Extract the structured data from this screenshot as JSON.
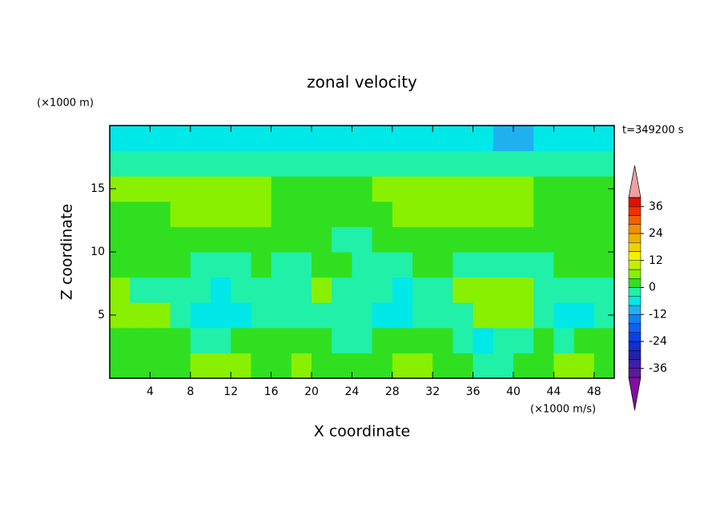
{
  "chart_data": {
    "type": "contour",
    "title": "zonal velocity",
    "y_units": "(×1000 m)",
    "x_units": "(×1000 m/s)",
    "time_label": "t=349200 s",
    "x_label": "X coordinate",
    "y_label": "Z coordinate",
    "xlim": [
      0,
      50
    ],
    "ylim": [
      0,
      20
    ],
    "xticks": [
      4,
      8,
      12,
      16,
      20,
      24,
      28,
      32,
      36,
      40,
      44,
      48
    ],
    "yticks": [
      5,
      10,
      15
    ],
    "x": [
      1,
      3,
      5,
      7,
      9,
      11,
      13,
      15,
      17,
      19,
      21,
      23,
      25,
      27,
      29,
      31,
      33,
      35,
      37,
      39,
      41,
      43,
      45,
      47,
      49
    ],
    "y": [
      1,
      3,
      5,
      7,
      9,
      11,
      13,
      15,
      17,
      19
    ],
    "z": [
      [
        2,
        2,
        2,
        2,
        5,
        5,
        5,
        2,
        2,
        5,
        2,
        2,
        2,
        2,
        5,
        5,
        2,
        2,
        -2,
        -2,
        2,
        2,
        5,
        5,
        2
      ],
      [
        2,
        2,
        2,
        2,
        -2,
        -2,
        2,
        2,
        2,
        2,
        2,
        -2,
        -2,
        2,
        2,
        2,
        2,
        -2,
        -6,
        -2,
        -2,
        2,
        -2,
        2,
        2
      ],
      [
        5,
        5,
        5,
        -2,
        -6,
        -6,
        -6,
        -2,
        -2,
        -2,
        -2,
        -2,
        -2,
        -6,
        -6,
        -2,
        -2,
        -2,
        5,
        5,
        5,
        -2,
        -6,
        -6,
        -2
      ],
      [
        5,
        -2,
        -2,
        -2,
        -2,
        -6,
        -2,
        -2,
        -2,
        -2,
        5,
        -2,
        -2,
        -2,
        -6,
        -2,
        -2,
        5,
        5,
        5,
        5,
        -2,
        -2,
        -2,
        -2
      ],
      [
        2,
        2,
        2,
        2,
        -2,
        -2,
        -2,
        2,
        -2,
        -2,
        2,
        2,
        -2,
        -2,
        -2,
        2,
        2,
        -2,
        -2,
        -2,
        -2,
        -2,
        2,
        2,
        2
      ],
      [
        2,
        2,
        2,
        2,
        2,
        2,
        2,
        2,
        2,
        2,
        2,
        -2,
        -2,
        2,
        2,
        2,
        2,
        2,
        2,
        2,
        2,
        2,
        2,
        2,
        2
      ],
      [
        2,
        2,
        2,
        5,
        5,
        5,
        5,
        5,
        2,
        2,
        2,
        2,
        2,
        2,
        5,
        5,
        5,
        5,
        5,
        5,
        5,
        2,
        2,
        2,
        2
      ],
      [
        5,
        5,
        5,
        5,
        5,
        5,
        5,
        5,
        2,
        2,
        2,
        2,
        2,
        5,
        5,
        5,
        5,
        5,
        5,
        5,
        5,
        2,
        2,
        2,
        2
      ],
      [
        -2,
        -2,
        -2,
        -2,
        -2,
        -2,
        -2,
        -2,
        -2,
        -2,
        -2,
        -2,
        -2,
        -2,
        -2,
        -2,
        -2,
        -2,
        -2,
        -2,
        -2,
        -2,
        -2,
        -2,
        -2
      ],
      [
        -6,
        -6,
        -6,
        -6,
        -6,
        -6,
        -6,
        -6,
        -6,
        -6,
        -6,
        -6,
        -6,
        -6,
        -6,
        -6,
        -6,
        -6,
        -6,
        -10,
        -10,
        -6,
        -6,
        -6,
        -6
      ]
    ],
    "levels": [
      -40,
      -36,
      -32,
      -28,
      -24,
      -20,
      -16,
      -12,
      -8,
      -4,
      0,
      4,
      8,
      12,
      16,
      20,
      24,
      28,
      32,
      36,
      40
    ],
    "colors": [
      "#5a1a9e",
      "#3c1ea8",
      "#2020b0",
      "#1030d0",
      "#0a40e8",
      "#1060f0",
      "#1080f0",
      "#20b0f0",
      "#00e8e8",
      "#20f0a8",
      "#30e020",
      "#88f000",
      "#c0f000",
      "#f0f000",
      "#f0d000",
      "#f0b000",
      "#f09000",
      "#f06000",
      "#f03000",
      "#e01000"
    ],
    "under_color": "#8010a0",
    "over_color": "#f0a0a0",
    "cbar_ticks": [
      -36,
      -24,
      -12,
      0,
      12,
      24,
      36
    ]
  }
}
